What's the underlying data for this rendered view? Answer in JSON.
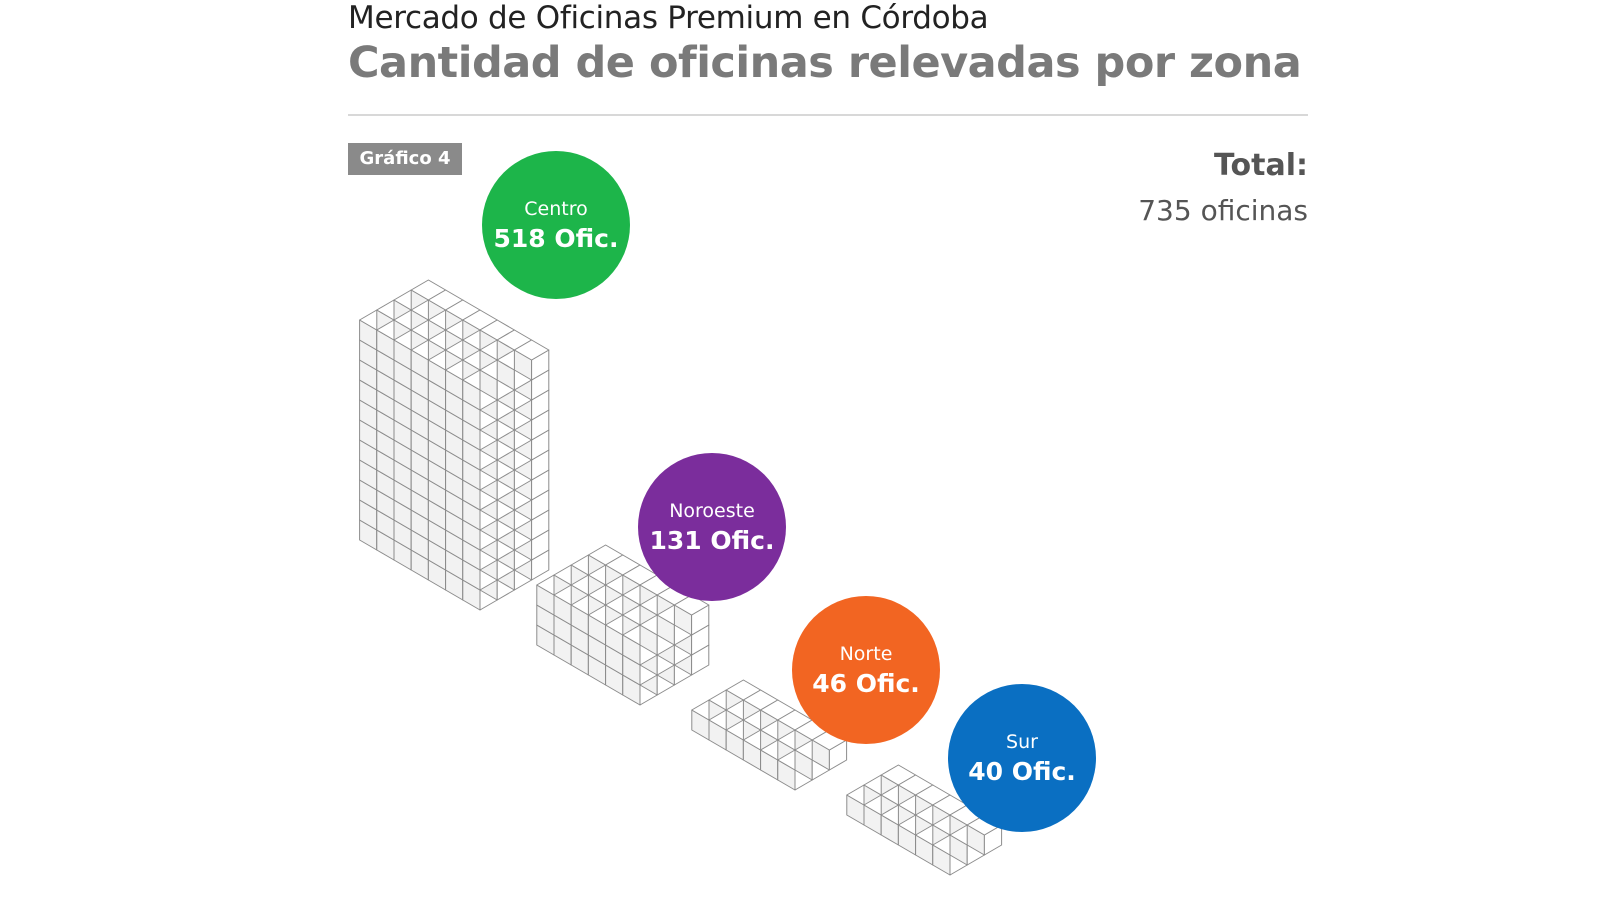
{
  "title": "Mercado de Oficinas Premium en Córdoba",
  "subtitle": "Cantidad de oficinas relevadas por zona",
  "figure_tag": "Gráfico 4",
  "total": {
    "label": "Total:",
    "value": "735 oficinas"
  },
  "colors": {
    "Centro": "#1db54a",
    "Noroeste": "#7b2d9c",
    "Norte": "#f26522",
    "Sur": "#0a6fc2",
    "cube_face": "#ffffff",
    "cube_stroke": "#8c8c8c"
  },
  "chart_data": {
    "type": "bar",
    "title": "Cantidad de oficinas relevadas por zona",
    "categories": [
      "Centro",
      "Noroeste",
      "Norte",
      "Sur"
    ],
    "values": [
      518,
      131,
      46,
      40
    ],
    "unit": "Ofic.",
    "value_labels": [
      "518 Ofic.",
      "131 Ofic.",
      "46 Ofic.",
      "40 Ofic."
    ]
  }
}
